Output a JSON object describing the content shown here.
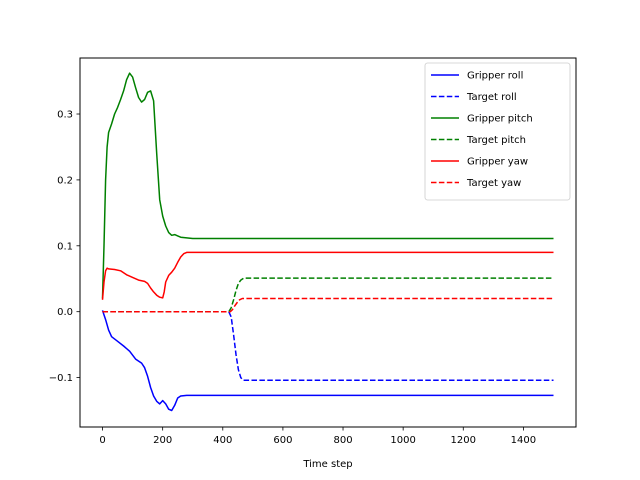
{
  "chart_data": {
    "type": "line",
    "title": "",
    "xlabel": "Time step",
    "ylabel": "",
    "xlim": [
      -75,
      1575
    ],
    "ylim": [
      -0.175,
      0.385
    ],
    "xticks": [
      0,
      200,
      400,
      600,
      800,
      1000,
      1200,
      1400
    ],
    "xtick_labels": [
      "0",
      "200",
      "400",
      "600",
      "800",
      "1000",
      "1200",
      "1400"
    ],
    "yticks": [
      -0.1,
      0.0,
      0.1,
      0.2,
      0.3
    ],
    "ytick_labels": [
      "−0.1",
      "0.0",
      "0.1",
      "0.2",
      "0.3"
    ],
    "grid": false,
    "legend_position": "top-right",
    "series": [
      {
        "name": "Gripper roll",
        "color": "#0000ff",
        "style": "solid",
        "points": [
          [
            0,
            0.002
          ],
          [
            10,
            -0.012
          ],
          [
            20,
            -0.028
          ],
          [
            30,
            -0.038
          ],
          [
            50,
            -0.045
          ],
          [
            70,
            -0.052
          ],
          [
            90,
            -0.06
          ],
          [
            110,
            -0.072
          ],
          [
            130,
            -0.078
          ],
          [
            140,
            -0.085
          ],
          [
            150,
            -0.098
          ],
          [
            160,
            -0.115
          ],
          [
            170,
            -0.128
          ],
          [
            180,
            -0.136
          ],
          [
            190,
            -0.14
          ],
          [
            200,
            -0.135
          ],
          [
            210,
            -0.14
          ],
          [
            220,
            -0.148
          ],
          [
            230,
            -0.15
          ],
          [
            240,
            -0.142
          ],
          [
            250,
            -0.131
          ],
          [
            260,
            -0.128
          ],
          [
            280,
            -0.127
          ],
          [
            300,
            -0.127
          ],
          [
            400,
            -0.127
          ],
          [
            600,
            -0.127
          ],
          [
            800,
            -0.127
          ],
          [
            1000,
            -0.127
          ],
          [
            1200,
            -0.127
          ],
          [
            1400,
            -0.127
          ],
          [
            1500,
            -0.127
          ]
        ]
      },
      {
        "name": "Target roll",
        "color": "#0000ff",
        "style": "dashed",
        "points": [
          [
            0,
            0.0
          ],
          [
            200,
            0.0
          ],
          [
            400,
            0.0
          ],
          [
            420,
            0.0
          ],
          [
            428,
            -0.008
          ],
          [
            436,
            -0.035
          ],
          [
            444,
            -0.065
          ],
          [
            452,
            -0.088
          ],
          [
            460,
            -0.1
          ],
          [
            468,
            -0.104
          ],
          [
            480,
            -0.104
          ],
          [
            600,
            -0.104
          ],
          [
            800,
            -0.104
          ],
          [
            1000,
            -0.104
          ],
          [
            1200,
            -0.104
          ],
          [
            1400,
            -0.104
          ],
          [
            1500,
            -0.104
          ]
        ]
      },
      {
        "name": "Gripper pitch",
        "color": "#008000",
        "style": "solid",
        "points": [
          [
            0,
            0.02
          ],
          [
            5,
            0.1
          ],
          [
            10,
            0.2
          ],
          [
            15,
            0.25
          ],
          [
            20,
            0.272
          ],
          [
            30,
            0.285
          ],
          [
            40,
            0.3
          ],
          [
            50,
            0.31
          ],
          [
            60,
            0.322
          ],
          [
            70,
            0.335
          ],
          [
            80,
            0.352
          ],
          [
            90,
            0.362
          ],
          [
            100,
            0.356
          ],
          [
            110,
            0.34
          ],
          [
            120,
            0.325
          ],
          [
            130,
            0.318
          ],
          [
            140,
            0.322
          ],
          [
            150,
            0.333
          ],
          [
            160,
            0.335
          ],
          [
            170,
            0.32
          ],
          [
            180,
            0.24
          ],
          [
            190,
            0.17
          ],
          [
            200,
            0.145
          ],
          [
            210,
            0.13
          ],
          [
            220,
            0.12
          ],
          [
            230,
            0.116
          ],
          [
            240,
            0.117
          ],
          [
            250,
            0.115
          ],
          [
            260,
            0.113
          ],
          [
            280,
            0.112
          ],
          [
            300,
            0.111
          ],
          [
            400,
            0.111
          ],
          [
            600,
            0.111
          ],
          [
            800,
            0.111
          ],
          [
            1000,
            0.111
          ],
          [
            1200,
            0.111
          ],
          [
            1400,
            0.111
          ],
          [
            1500,
            0.111
          ]
        ]
      },
      {
        "name": "Target pitch",
        "color": "#008000",
        "style": "dashed",
        "points": [
          [
            0,
            0.0
          ],
          [
            200,
            0.0
          ],
          [
            400,
            0.0
          ],
          [
            420,
            0.0
          ],
          [
            428,
            0.006
          ],
          [
            436,
            0.018
          ],
          [
            444,
            0.032
          ],
          [
            452,
            0.043
          ],
          [
            460,
            0.048
          ],
          [
            470,
            0.051
          ],
          [
            480,
            0.051
          ],
          [
            600,
            0.051
          ],
          [
            800,
            0.051
          ],
          [
            1000,
            0.051
          ],
          [
            1200,
            0.051
          ],
          [
            1400,
            0.051
          ],
          [
            1500,
            0.051
          ]
        ]
      },
      {
        "name": "Gripper yaw",
        "color": "#ff0000",
        "style": "solid",
        "points": [
          [
            0,
            0.018
          ],
          [
            5,
            0.045
          ],
          [
            10,
            0.062
          ],
          [
            15,
            0.066
          ],
          [
            20,
            0.065
          ],
          [
            40,
            0.064
          ],
          [
            60,
            0.062
          ],
          [
            80,
            0.056
          ],
          [
            100,
            0.052
          ],
          [
            120,
            0.048
          ],
          [
            140,
            0.046
          ],
          [
            150,
            0.043
          ],
          [
            160,
            0.036
          ],
          [
            170,
            0.03
          ],
          [
            180,
            0.025
          ],
          [
            190,
            0.022
          ],
          [
            200,
            0.021
          ],
          [
            205,
            0.03
          ],
          [
            210,
            0.045
          ],
          [
            220,
            0.055
          ],
          [
            230,
            0.06
          ],
          [
            240,
            0.066
          ],
          [
            250,
            0.075
          ],
          [
            260,
            0.083
          ],
          [
            270,
            0.088
          ],
          [
            280,
            0.09
          ],
          [
            300,
            0.09
          ],
          [
            400,
            0.09
          ],
          [
            600,
            0.09
          ],
          [
            800,
            0.09
          ],
          [
            1000,
            0.09
          ],
          [
            1200,
            0.09
          ],
          [
            1400,
            0.09
          ],
          [
            1500,
            0.09
          ]
        ]
      },
      {
        "name": "Target yaw",
        "color": "#ff0000",
        "style": "dashed",
        "points": [
          [
            0,
            0.0
          ],
          [
            200,
            0.0
          ],
          [
            400,
            0.0
          ],
          [
            425,
            0.0
          ],
          [
            432,
            0.003
          ],
          [
            440,
            0.009
          ],
          [
            448,
            0.014
          ],
          [
            456,
            0.018
          ],
          [
            465,
            0.02
          ],
          [
            480,
            0.02
          ],
          [
            600,
            0.02
          ],
          [
            800,
            0.02
          ],
          [
            1000,
            0.02
          ],
          [
            1200,
            0.02
          ],
          [
            1400,
            0.02
          ],
          [
            1500,
            0.02
          ]
        ]
      }
    ]
  }
}
